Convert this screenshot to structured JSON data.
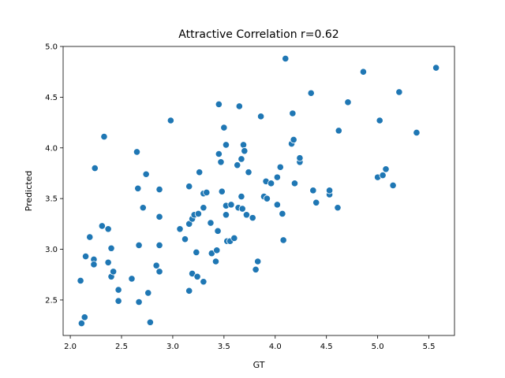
{
  "chart_data": {
    "type": "scatter",
    "title": "Attractive Correlation r=0.62",
    "xlabel": "GT",
    "ylabel": "Predicted",
    "xlim": [
      1.93,
      5.75
    ],
    "ylim": [
      2.15,
      5.0
    ],
    "xticks": [
      2.0,
      2.5,
      3.0,
      3.5,
      4.0,
      4.5,
      5.0,
      5.5
    ],
    "yticks": [
      2.5,
      3.0,
      3.5,
      4.0,
      4.5,
      5.0
    ],
    "xtick_labels": [
      "2.0",
      "2.5",
      "3.0",
      "3.5",
      "4.0",
      "4.5",
      "5.0",
      "5.5"
    ],
    "ytick_labels": [
      "2.5",
      "3.0",
      "3.5",
      "4.0",
      "4.5",
      "5.0"
    ],
    "grid": false,
    "marker_color": "#1f77b4",
    "marker_edge": "#ffffff",
    "points": [
      [
        2.1,
        2.69
      ],
      [
        2.11,
        2.27
      ],
      [
        2.14,
        2.33
      ],
      [
        2.15,
        2.93
      ],
      [
        2.19,
        3.12
      ],
      [
        2.23,
        2.9
      ],
      [
        2.23,
        2.85
      ],
      [
        2.24,
        3.8
      ],
      [
        2.31,
        3.23
      ],
      [
        2.33,
        4.11
      ],
      [
        2.37,
        3.2
      ],
      [
        2.37,
        2.87
      ],
      [
        2.4,
        3.01
      ],
      [
        2.4,
        2.73
      ],
      [
        2.42,
        2.78
      ],
      [
        2.47,
        2.6
      ],
      [
        2.47,
        2.49
      ],
      [
        2.6,
        2.71
      ],
      [
        2.65,
        3.96
      ],
      [
        2.66,
        3.6
      ],
      [
        2.67,
        3.04
      ],
      [
        2.67,
        2.48
      ],
      [
        2.71,
        3.41
      ],
      [
        2.74,
        3.74
      ],
      [
        2.76,
        2.57
      ],
      [
        2.78,
        2.28
      ],
      [
        2.84,
        2.84
      ],
      [
        2.87,
        3.59
      ],
      [
        2.87,
        3.32
      ],
      [
        2.87,
        3.04
      ],
      [
        2.87,
        2.78
      ],
      [
        2.98,
        4.27
      ],
      [
        3.07,
        3.2
      ],
      [
        3.12,
        3.1
      ],
      [
        3.16,
        3.62
      ],
      [
        3.16,
        3.25
      ],
      [
        3.16,
        2.59
      ],
      [
        3.19,
        3.3
      ],
      [
        3.19,
        2.76
      ],
      [
        3.21,
        3.34
      ],
      [
        3.23,
        2.97
      ],
      [
        3.24,
        2.73
      ],
      [
        3.25,
        3.35
      ],
      [
        3.26,
        3.76
      ],
      [
        3.3,
        3.55
      ],
      [
        3.3,
        3.41
      ],
      [
        3.3,
        2.68
      ],
      [
        3.33,
        3.56
      ],
      [
        3.37,
        3.26
      ],
      [
        3.38,
        2.96
      ],
      [
        3.42,
        2.88
      ],
      [
        3.43,
        2.99
      ],
      [
        3.44,
        3.18
      ],
      [
        3.45,
        3.94
      ],
      [
        3.45,
        4.43
      ],
      [
        3.47,
        3.86
      ],
      [
        3.48,
        3.57
      ],
      [
        3.5,
        4.2
      ],
      [
        3.52,
        4.03
      ],
      [
        3.52,
        3.43
      ],
      [
        3.52,
        3.34
      ],
      [
        3.53,
        3.08
      ],
      [
        3.56,
        3.08
      ],
      [
        3.57,
        3.44
      ],
      [
        3.6,
        3.11
      ],
      [
        3.63,
        3.83
      ],
      [
        3.64,
        3.41
      ],
      [
        3.65,
        4.41
      ],
      [
        3.67,
        3.89
      ],
      [
        3.67,
        3.52
      ],
      [
        3.68,
        3.4
      ],
      [
        3.69,
        4.03
      ],
      [
        3.7,
        3.97
      ],
      [
        3.72,
        3.34
      ],
      [
        3.74,
        3.76
      ],
      [
        3.78,
        3.31
      ],
      [
        3.81,
        2.8
      ],
      [
        3.83,
        2.88
      ],
      [
        3.86,
        4.31
      ],
      [
        3.89,
        3.52
      ],
      [
        3.91,
        3.67
      ],
      [
        3.92,
        3.5
      ],
      [
        3.96,
        3.65
      ],
      [
        4.02,
        3.44
      ],
      [
        4.02,
        3.71
      ],
      [
        4.05,
        3.81
      ],
      [
        4.07,
        3.35
      ],
      [
        4.08,
        3.09
      ],
      [
        4.1,
        4.88
      ],
      [
        4.16,
        4.04
      ],
      [
        4.17,
        4.34
      ],
      [
        4.18,
        4.08
      ],
      [
        4.19,
        3.65
      ],
      [
        4.24,
        3.86
      ],
      [
        4.24,
        3.9
      ],
      [
        4.35,
        4.54
      ],
      [
        4.37,
        3.58
      ],
      [
        4.4,
        3.46
      ],
      [
        4.53,
        3.54
      ],
      [
        4.53,
        3.58
      ],
      [
        4.61,
        3.41
      ],
      [
        4.62,
        4.17
      ],
      [
        4.71,
        4.45
      ],
      [
        4.86,
        4.75
      ],
      [
        5.0,
        3.71
      ],
      [
        5.02,
        4.27
      ],
      [
        5.05,
        3.73
      ],
      [
        5.08,
        3.79
      ],
      [
        5.15,
        3.63
      ],
      [
        5.21,
        4.55
      ],
      [
        5.38,
        4.15
      ],
      [
        5.57,
        4.79
      ]
    ]
  }
}
